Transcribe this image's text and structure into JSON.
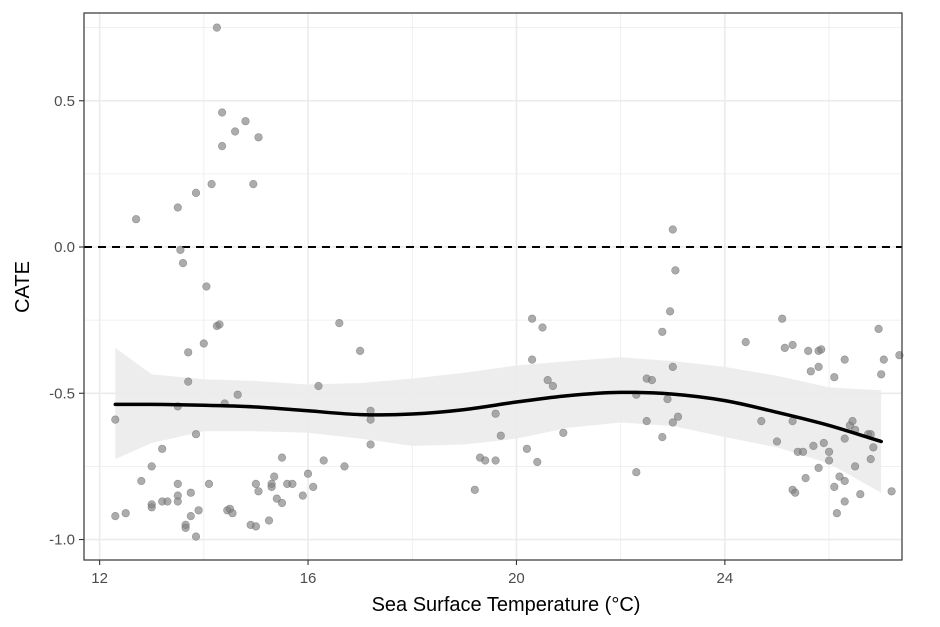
{
  "chart_data": {
    "type": "scatter",
    "title": "",
    "xlabel": "Sea Surface Temperature (°C)",
    "ylabel": "CATE",
    "xlim": [
      11.7,
      27.4
    ],
    "ylim": [
      -1.07,
      0.8
    ],
    "x_ticks": [
      12,
      16,
      20,
      24
    ],
    "x_tick_labels": [
      "12",
      "16",
      "20",
      "24"
    ],
    "y_ticks": [
      -1.0,
      -0.5,
      0.0,
      0.5
    ],
    "y_tick_labels": [
      "-1.0",
      "-0.5",
      "0.0",
      "0.5"
    ],
    "grid": true,
    "reference_line": {
      "y": 0.0,
      "style": "dashed",
      "color": "#000000"
    },
    "colors": {
      "points": "#7f7f7f",
      "smooth_line": "#000000",
      "ribbon": "#ebebeb",
      "grid": "#ebebeb",
      "panel_border": "#333333"
    },
    "smooth": {
      "x": [
        12.3,
        13.0,
        14.0,
        15.0,
        16.0,
        17.0,
        18.0,
        19.0,
        20.0,
        21.0,
        22.0,
        23.0,
        24.0,
        25.0,
        26.0,
        27.0
      ],
      "y": [
        -0.538,
        -0.538,
        -0.541,
        -0.547,
        -0.56,
        -0.573,
        -0.571,
        -0.556,
        -0.53,
        -0.508,
        -0.497,
        -0.503,
        -0.525,
        -0.565,
        -0.61,
        -0.665
      ],
      "lower": [
        -0.725,
        -0.67,
        -0.63,
        -0.63,
        -0.635,
        -0.655,
        -0.68,
        -0.675,
        -0.655,
        -0.618,
        -0.6,
        -0.612,
        -0.65,
        -0.685,
        -0.74,
        -0.84
      ],
      "upper": [
        -0.345,
        -0.435,
        -0.452,
        -0.458,
        -0.47,
        -0.465,
        -0.45,
        -0.43,
        -0.405,
        -0.39,
        -0.377,
        -0.39,
        -0.41,
        -0.44,
        -0.48,
        -0.49
      ]
    },
    "series": [
      {
        "points": [
          [
            12.3,
            -0.59
          ],
          [
            12.3,
            -0.92
          ],
          [
            12.5,
            -0.91
          ],
          [
            12.7,
            0.095
          ],
          [
            12.8,
            -0.8
          ],
          [
            13.0,
            -0.75
          ],
          [
            13.0,
            -0.88
          ],
          [
            13.0,
            -0.89
          ],
          [
            13.2,
            -0.87
          ],
          [
            13.2,
            -0.69
          ],
          [
            13.3,
            -0.87
          ],
          [
            13.5,
            0.135
          ],
          [
            13.5,
            -0.81
          ],
          [
            13.5,
            -0.85
          ],
          [
            13.5,
            -0.87
          ],
          [
            13.5,
            -0.545
          ],
          [
            13.55,
            -0.01
          ],
          [
            13.6,
            -0.055
          ],
          [
            13.65,
            -0.95
          ],
          [
            13.65,
            -0.96
          ],
          [
            13.7,
            -0.46
          ],
          [
            13.7,
            -0.36
          ],
          [
            13.75,
            -0.92
          ],
          [
            13.75,
            -0.84
          ],
          [
            13.85,
            0.185
          ],
          [
            13.85,
            -0.64
          ],
          [
            13.85,
            -0.99
          ],
          [
            13.9,
            -0.9
          ],
          [
            14.0,
            -0.33
          ],
          [
            14.05,
            -0.135
          ],
          [
            14.1,
            -0.81
          ],
          [
            14.15,
            0.215
          ],
          [
            14.25,
            0.75
          ],
          [
            14.25,
            -0.27
          ],
          [
            14.3,
            -0.265
          ],
          [
            14.35,
            0.345
          ],
          [
            14.35,
            0.46
          ],
          [
            14.4,
            -0.535
          ],
          [
            14.45,
            -0.9
          ],
          [
            14.5,
            -0.895
          ],
          [
            14.55,
            -0.91
          ],
          [
            14.6,
            0.395
          ],
          [
            14.65,
            -0.505
          ],
          [
            14.8,
            0.43
          ],
          [
            14.9,
            -0.95
          ],
          [
            14.95,
            0.215
          ],
          [
            15.0,
            -0.955
          ],
          [
            15.0,
            -0.81
          ],
          [
            15.05,
            -0.835
          ],
          [
            15.05,
            0.375
          ],
          [
            15.25,
            -0.935
          ],
          [
            15.3,
            -0.81
          ],
          [
            15.3,
            -0.82
          ],
          [
            15.35,
            -0.785
          ],
          [
            15.4,
            -0.86
          ],
          [
            15.5,
            -0.875
          ],
          [
            15.5,
            -0.72
          ],
          [
            15.6,
            -0.81
          ],
          [
            15.7,
            -0.81
          ],
          [
            15.9,
            -0.85
          ],
          [
            16.0,
            -0.775
          ],
          [
            16.1,
            -0.82
          ],
          [
            16.2,
            -0.475
          ],
          [
            16.3,
            -0.73
          ],
          [
            16.6,
            -0.26
          ],
          [
            16.7,
            -0.75
          ],
          [
            17.0,
            -0.355
          ],
          [
            17.2,
            -0.56
          ],
          [
            17.2,
            -0.59
          ],
          [
            17.2,
            -0.675
          ],
          [
            19.2,
            -0.83
          ],
          [
            19.3,
            -0.72
          ],
          [
            19.4,
            -0.73
          ],
          [
            19.6,
            -0.73
          ],
          [
            19.6,
            -0.57
          ],
          [
            19.7,
            -0.645
          ],
          [
            20.2,
            -0.69
          ],
          [
            20.3,
            -0.245
          ],
          [
            20.3,
            -0.385
          ],
          [
            20.4,
            -0.735
          ],
          [
            20.5,
            -0.275
          ],
          [
            20.6,
            -0.455
          ],
          [
            20.7,
            -0.475
          ],
          [
            20.9,
            -0.635
          ],
          [
            22.3,
            -0.77
          ],
          [
            22.3,
            -0.505
          ],
          [
            22.5,
            -0.45
          ],
          [
            22.5,
            -0.595
          ],
          [
            22.6,
            -0.455
          ],
          [
            22.8,
            -0.29
          ],
          [
            22.8,
            -0.65
          ],
          [
            22.9,
            -0.52
          ],
          [
            22.95,
            -0.22
          ],
          [
            23.0,
            -0.41
          ],
          [
            23.0,
            -0.6
          ],
          [
            23.05,
            -0.08
          ],
          [
            23.1,
            -0.58
          ],
          [
            23.0,
            0.06
          ],
          [
            24.4,
            -0.325
          ],
          [
            24.7,
            -0.595
          ],
          [
            25.0,
            -0.665
          ],
          [
            25.1,
            -0.245
          ],
          [
            25.15,
            -0.345
          ],
          [
            25.3,
            -0.335
          ],
          [
            25.3,
            -0.595
          ],
          [
            25.3,
            -0.83
          ],
          [
            25.35,
            -0.84
          ],
          [
            25.4,
            -0.7
          ],
          [
            25.5,
            -0.7
          ],
          [
            25.55,
            -0.79
          ],
          [
            25.6,
            -0.355
          ],
          [
            25.65,
            -0.425
          ],
          [
            25.7,
            -0.68
          ],
          [
            25.8,
            -0.355
          ],
          [
            25.8,
            -0.41
          ],
          [
            25.8,
            -0.755
          ],
          [
            25.85,
            -0.35
          ],
          [
            25.9,
            -0.67
          ],
          [
            26.0,
            -0.7
          ],
          [
            26.0,
            -0.73
          ],
          [
            26.1,
            -0.445
          ],
          [
            26.1,
            -0.82
          ],
          [
            26.15,
            -0.91
          ],
          [
            26.2,
            -0.785
          ],
          [
            26.3,
            -0.385
          ],
          [
            26.3,
            -0.655
          ],
          [
            26.3,
            -0.8
          ],
          [
            26.3,
            -0.87
          ],
          [
            26.4,
            -0.61
          ],
          [
            26.45,
            -0.595
          ],
          [
            26.5,
            -0.625
          ],
          [
            26.5,
            -0.75
          ],
          [
            26.6,
            -0.845
          ],
          [
            26.75,
            -0.64
          ],
          [
            26.8,
            -0.725
          ],
          [
            26.85,
            -0.685
          ],
          [
            26.95,
            -0.28
          ],
          [
            27.0,
            -0.435
          ],
          [
            27.05,
            -0.385
          ],
          [
            27.2,
            -0.835
          ],
          [
            27.35,
            -0.37
          ],
          [
            26.8,
            -0.64
          ]
        ]
      }
    ]
  }
}
